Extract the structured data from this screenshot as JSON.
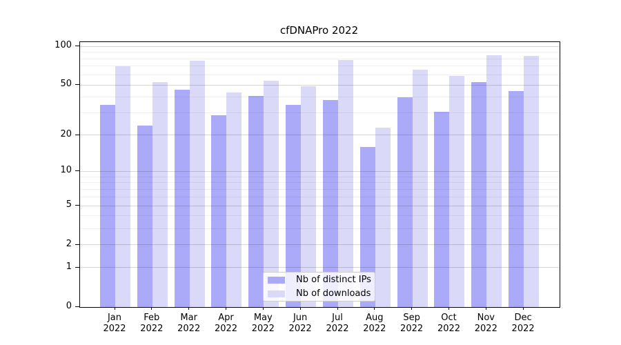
{
  "title": "cfDNAPro 2022",
  "chart_data": {
    "type": "bar",
    "title": "cfDNAPro 2022",
    "categories": [
      "Jan",
      "Feb",
      "Mar",
      "Apr",
      "May",
      "Jun",
      "Jul",
      "Aug",
      "Sep",
      "Oct",
      "Nov",
      "Dec"
    ],
    "category_year": "2022",
    "series": [
      {
        "name": "Nb of distinct IPs",
        "color": "#aaaaf8",
        "values": [
          35,
          24,
          46,
          29,
          41,
          35,
          38,
          16,
          40,
          31,
          53,
          45
        ]
      },
      {
        "name": "Nb of downloads",
        "color": "#dadaf8",
        "values": [
          70,
          53,
          78,
          44,
          54,
          49,
          79,
          23,
          66,
          59,
          86,
          85
        ]
      }
    ],
    "yscale": "log1p",
    "ylim": [
      0,
      108
    ],
    "yticks": [
      0,
      1,
      2,
      5,
      10,
      20,
      50,
      100
    ],
    "yticks_minor": [
      3,
      4,
      6,
      7,
      8,
      9,
      30,
      40,
      60,
      70,
      80,
      90
    ],
    "grid": true,
    "legend_position": "lower center"
  },
  "colors": {
    "bar_distinct_ips": "#aaaaf8",
    "bar_downloads": "#dadaf8",
    "grid_major": "#d8d8d8",
    "grid_minor": "#efefef",
    "axis": "#000000",
    "legend_border": "#cccccc",
    "background": "#ffffff"
  }
}
